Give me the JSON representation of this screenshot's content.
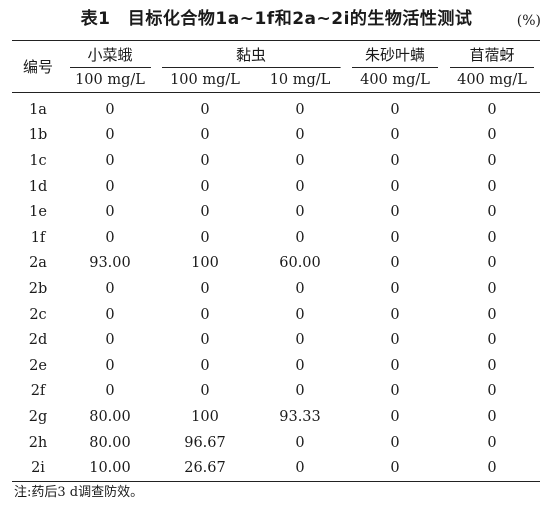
{
  "caption": {
    "title": "表1　目标化合物1a~1f和2a~2i的生物活性测试",
    "unit": "(%)"
  },
  "headers": {
    "compound": "编号",
    "species": {
      "diamondback_moth": "小菜蛾",
      "armyworm": "黏虫",
      "spider_mite": "朱砂叶螨",
      "aphid": "苜蓿蚜"
    },
    "concentrations": [
      "100 mg/L",
      "100 mg/L",
      "10 mg/L",
      "400 mg/L",
      "400 mg/L"
    ]
  },
  "rows": [
    {
      "id": "1a",
      "values": [
        "0",
        "0",
        "0",
        "0",
        "0"
      ]
    },
    {
      "id": "1b",
      "values": [
        "0",
        "0",
        "0",
        "0",
        "0"
      ]
    },
    {
      "id": "1c",
      "values": [
        "0",
        "0",
        "0",
        "0",
        "0"
      ]
    },
    {
      "id": "1d",
      "values": [
        "0",
        "0",
        "0",
        "0",
        "0"
      ]
    },
    {
      "id": "1e",
      "values": [
        "0",
        "0",
        "0",
        "0",
        "0"
      ]
    },
    {
      "id": "1f",
      "values": [
        "0",
        "0",
        "0",
        "0",
        "0"
      ]
    },
    {
      "id": "2a",
      "values": [
        "93.00",
        "100",
        "60.00",
        "0",
        "0"
      ]
    },
    {
      "id": "2b",
      "values": [
        "0",
        "0",
        "0",
        "0",
        "0"
      ]
    },
    {
      "id": "2c",
      "values": [
        "0",
        "0",
        "0",
        "0",
        "0"
      ]
    },
    {
      "id": "2d",
      "values": [
        "0",
        "0",
        "0",
        "0",
        "0"
      ]
    },
    {
      "id": "2e",
      "values": [
        "0",
        "0",
        "0",
        "0",
        "0"
      ]
    },
    {
      "id": "2f",
      "values": [
        "0",
        "0",
        "0",
        "0",
        "0"
      ]
    },
    {
      "id": "2g",
      "values": [
        "80.00",
        "100",
        "93.33",
        "0",
        "0"
      ]
    },
    {
      "id": "2h",
      "values": [
        "80.00",
        "96.67",
        "0",
        "0",
        "0"
      ]
    },
    {
      "id": "2i",
      "values": [
        "10.00",
        "26.67",
        "0",
        "0",
        "0"
      ]
    }
  ],
  "note": "注:药后3 d调查防效。"
}
